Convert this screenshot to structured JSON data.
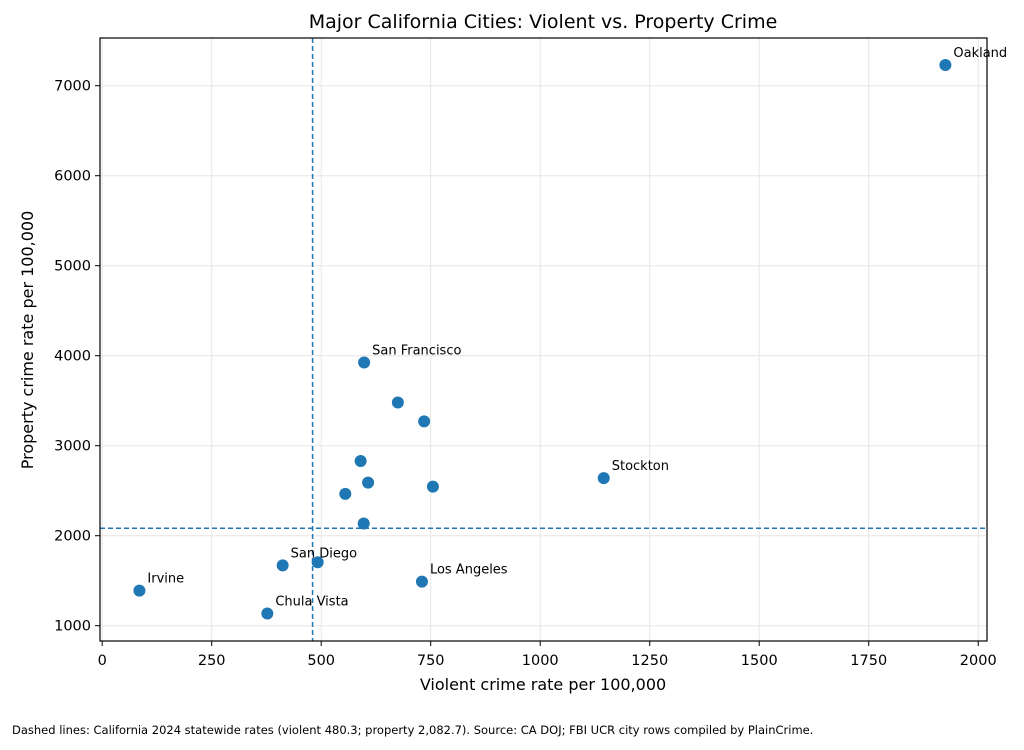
{
  "chart_data": {
    "type": "scatter",
    "title": "Major California Cities: Violent vs. Property Crime",
    "xlabel": "Violent crime rate per 100,000",
    "ylabel": "Property crime rate per 100,000",
    "xlim": [
      -5,
      2020
    ],
    "ylim": [
      830,
      7530
    ],
    "xticks": [
      0,
      250,
      500,
      750,
      1000,
      1250,
      1500,
      1750,
      2000
    ],
    "yticks": [
      1000,
      2000,
      3000,
      4000,
      5000,
      6000,
      7000
    ],
    "grid": true,
    "point_color": "#1f77b4",
    "reference_lines": {
      "violent_state_rate": 480.3,
      "property_state_rate": 2082.7,
      "style": "dashed",
      "color": "#1f77b4"
    },
    "points": [
      {
        "x": 1925,
        "y": 7230,
        "label": "Oakland"
      },
      {
        "x": 598,
        "y": 3925,
        "label": "San Francisco"
      },
      {
        "x": 675,
        "y": 3480,
        "label": ""
      },
      {
        "x": 735,
        "y": 3270,
        "label": ""
      },
      {
        "x": 590,
        "y": 2830,
        "label": ""
      },
      {
        "x": 607,
        "y": 2590,
        "label": ""
      },
      {
        "x": 555,
        "y": 2465,
        "label": ""
      },
      {
        "x": 755,
        "y": 2545,
        "label": ""
      },
      {
        "x": 1145,
        "y": 2640,
        "label": "Stockton"
      },
      {
        "x": 597,
        "y": 2135,
        "label": ""
      },
      {
        "x": 492,
        "y": 1705,
        "label": ""
      },
      {
        "x": 412,
        "y": 1670,
        "label": "San Diego"
      },
      {
        "x": 730,
        "y": 1490,
        "label": "Los Angeles"
      },
      {
        "x": 85,
        "y": 1390,
        "label": "Irvine"
      },
      {
        "x": 377,
        "y": 1135,
        "label": "Chula Vista"
      }
    ]
  },
  "caption": "Dashed lines: California 2024 statewide rates (violent 480.3; property 2,082.7). Source: CA DOJ; FBI UCR city rows compiled by PlainCrime."
}
